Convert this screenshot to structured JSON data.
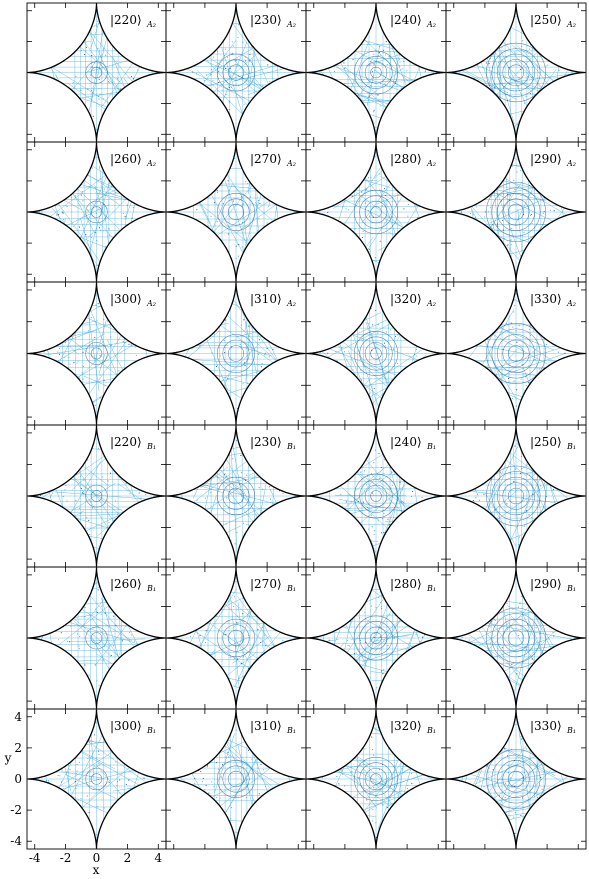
{
  "chart_data": {
    "type": "scatter",
    "layout": "grid of 6 rows by 4 columns",
    "xlabel": "x",
    "ylabel": "y",
    "xlim": [
      -4.5,
      4.5
    ],
    "ylim": [
      -4.5,
      4.5
    ],
    "x_ticks": [
      "-4",
      "-2",
      "0",
      "2",
      "4"
    ],
    "y_ticks": [
      "4",
      "2",
      "0",
      "-2",
      "-4"
    ],
    "colors": {
      "trajectory": "#3aa6d8",
      "trajectory_dark": "#1b4f8a",
      "boundary": "#000000"
    },
    "panels": [
      {
        "state": "|220⟩",
        "sym": "A₂"
      },
      {
        "state": "|230⟩",
        "sym": "A₂"
      },
      {
        "state": "|240⟩",
        "sym": "A₂"
      },
      {
        "state": "|250⟩",
        "sym": "A₂"
      },
      {
        "state": "|260⟩",
        "sym": "A₂"
      },
      {
        "state": "|270⟩",
        "sym": "A₂"
      },
      {
        "state": "|280⟩",
        "sym": "A₂"
      },
      {
        "state": "|290⟩",
        "sym": "A₂"
      },
      {
        "state": "|300⟩",
        "sym": "A₂"
      },
      {
        "state": "|310⟩",
        "sym": "A₂"
      },
      {
        "state": "|320⟩",
        "sym": "A₂"
      },
      {
        "state": "|330⟩",
        "sym": "A₂"
      },
      {
        "state": "|220⟩",
        "sym": "B₁"
      },
      {
        "state": "|230⟩",
        "sym": "B₁"
      },
      {
        "state": "|240⟩",
        "sym": "B₁"
      },
      {
        "state": "|250⟩",
        "sym": "B₁"
      },
      {
        "state": "|260⟩",
        "sym": "B₁"
      },
      {
        "state": "|270⟩",
        "sym": "B₁"
      },
      {
        "state": "|280⟩",
        "sym": "B₁"
      },
      {
        "state": "|290⟩",
        "sym": "B₁"
      },
      {
        "state": "|300⟩",
        "sym": "B₁"
      },
      {
        "state": "|310⟩",
        "sym": "B₁"
      },
      {
        "state": "|320⟩",
        "sym": "B₁"
      },
      {
        "state": "|330⟩",
        "sym": "B₁"
      }
    ]
  }
}
